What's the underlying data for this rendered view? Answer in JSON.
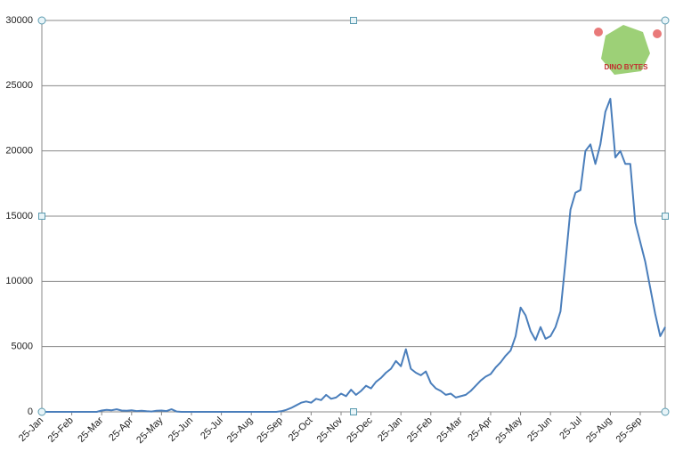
{
  "chart_data": {
    "type": "line",
    "logo_text": "DINO BYTES",
    "categories": [
      "25-Jan",
      null,
      null,
      null,
      null,
      null,
      "25-Feb",
      null,
      null,
      null,
      null,
      null,
      "25-Mar",
      null,
      null,
      null,
      null,
      null,
      "25-Apr",
      null,
      null,
      null,
      null,
      null,
      "25-May",
      null,
      null,
      null,
      null,
      null,
      "25-Jun",
      null,
      null,
      null,
      null,
      null,
      "25-Jul",
      null,
      null,
      null,
      null,
      null,
      "25-Aug",
      null,
      null,
      null,
      null,
      null,
      "25-Sep",
      null,
      null,
      null,
      null,
      null,
      "25-Oct",
      null,
      null,
      null,
      null,
      null,
      "25-Nov",
      null,
      null,
      null,
      null,
      null,
      "25-Dec",
      null,
      null,
      null,
      null,
      null,
      "25-Jan",
      null,
      null,
      null,
      null,
      null,
      "25-Feb",
      null,
      null,
      null,
      null,
      null,
      "25-Mar",
      null,
      null,
      null,
      null,
      null,
      "25-Apr",
      null,
      null,
      null,
      null,
      null,
      "25-May",
      null,
      null,
      null,
      null,
      null,
      "25-Jun",
      null,
      null,
      null,
      null,
      null,
      "25-Jul",
      null,
      null,
      null,
      null,
      null,
      "25-Aug",
      null,
      null,
      null,
      null,
      null,
      "25-Sep",
      null,
      null,
      null,
      null,
      null
    ],
    "series": [
      {
        "color": "#4a7ebb",
        "values": [
          0,
          0,
          0,
          0,
          0,
          0,
          0,
          0,
          0,
          0,
          0,
          0,
          100,
          150,
          120,
          200,
          100,
          80,
          120,
          60,
          90,
          50,
          30,
          80,
          100,
          60,
          200,
          30,
          0,
          0,
          0,
          0,
          0,
          0,
          0,
          0,
          0,
          0,
          0,
          0,
          0,
          0,
          0,
          0,
          0,
          0,
          0,
          0,
          50,
          150,
          300,
          500,
          700,
          800,
          700,
          1000,
          900,
          1300,
          1000,
          1100,
          1400,
          1200,
          1700,
          1300,
          1600,
          2000,
          1800,
          2300,
          2600,
          3000,
          3300,
          3900,
          3500,
          4800,
          3300,
          3000,
          2800,
          3100,
          2200,
          1800,
          1600,
          1300,
          1400,
          1100,
          1200,
          1300,
          1600,
          2000,
          2400,
          2700,
          2900,
          3400,
          3800,
          4300,
          4700,
          5800,
          8000,
          7400,
          6200,
          5500,
          6500,
          5600,
          5800,
          6500,
          7700,
          11500,
          15500,
          16800,
          17000,
          20000,
          20500,
          19000,
          20500,
          23000,
          24000,
          19500,
          20000,
          19000,
          19000,
          14500,
          13000,
          11500,
          9500,
          7500,
          5800,
          6500
        ]
      }
    ],
    "ylim": [
      0,
      30000
    ],
    "yticks": [
      0,
      5000,
      10000,
      15000,
      20000,
      25000,
      30000
    ],
    "grid": true
  }
}
